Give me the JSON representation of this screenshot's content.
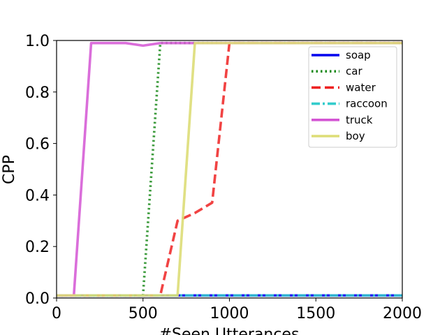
{
  "chart_data": {
    "type": "line",
    "title": "",
    "xlabel": "#Seen Utterances",
    "ylabel": "CPP",
    "xlim": [
      0,
      2000
    ],
    "ylim": [
      0,
      1.0
    ],
    "xticks": [
      0,
      500,
      1000,
      1500,
      2000
    ],
    "yticks": [
      0.0,
      0.2,
      0.4,
      0.6,
      0.8,
      1.0
    ],
    "xtick_labels": [
      "0",
      "500",
      "1000",
      "1500",
      "2000"
    ],
    "ytick_labels": [
      "0.0",
      "0.2",
      "0.4",
      "0.6",
      "0.8",
      "1.0"
    ],
    "grid": false,
    "legend_position": "upper right",
    "series": [
      {
        "name": "soap",
        "color": "#0000ee",
        "style": "solid",
        "x": [
          0,
          100,
          200,
          300,
          400,
          500,
          600,
          700,
          800,
          900,
          1000,
          1100,
          1200,
          1300,
          1400,
          1500,
          1600,
          1700,
          1800,
          1900,
          2000
        ],
        "y": [
          0.01,
          0.01,
          0.01,
          0.01,
          0.01,
          0.01,
          0.01,
          0.01,
          0.01,
          0.01,
          0.01,
          0.01,
          0.01,
          0.01,
          0.01,
          0.01,
          0.01,
          0.01,
          0.01,
          0.01,
          0.01
        ]
      },
      {
        "name": "car",
        "color": "#1a8a1a",
        "style": "dotted",
        "x": [
          0,
          100,
          200,
          300,
          400,
          500,
          600,
          700,
          800,
          900,
          1000,
          1100,
          1200,
          1300,
          1400,
          1500,
          1600,
          1700,
          1800,
          1900,
          2000
        ],
        "y": [
          0.01,
          0.01,
          0.01,
          0.01,
          0.01,
          0.01,
          0.99,
          0.99,
          0.99,
          0.99,
          0.99,
          0.99,
          0.99,
          0.99,
          0.99,
          0.99,
          0.99,
          0.99,
          0.99,
          0.99,
          0.99
        ]
      },
      {
        "name": "water",
        "color": "#ee2222",
        "style": "dashed",
        "x": [
          0,
          100,
          200,
          300,
          400,
          500,
          600,
          700,
          800,
          900,
          1000,
          1100,
          1200,
          1300,
          1400,
          1500,
          1600,
          1700,
          1800,
          1900,
          2000
        ],
        "y": [
          0.01,
          0.01,
          0.01,
          0.01,
          0.01,
          0.01,
          0.01,
          0.3,
          0.33,
          0.37,
          0.99,
          0.99,
          0.99,
          0.99,
          0.99,
          0.99,
          0.99,
          0.99,
          0.99,
          0.99,
          0.99
        ]
      },
      {
        "name": "raccoon",
        "color": "#33cccc",
        "style": "dashdot",
        "x": [
          0,
          100,
          200,
          300,
          400,
          500,
          600,
          700,
          800,
          900,
          1000,
          1100,
          1200,
          1300,
          1400,
          1500,
          1600,
          1700,
          1800,
          1900,
          2000
        ],
        "y": [
          0.01,
          0.01,
          0.01,
          0.01,
          0.01,
          0.01,
          0.01,
          0.01,
          0.01,
          0.01,
          0.01,
          0.01,
          0.01,
          0.01,
          0.01,
          0.01,
          0.01,
          0.01,
          0.01,
          0.01,
          0.01
        ]
      },
      {
        "name": "truck",
        "color": "#d455d4",
        "style": "solid",
        "x": [
          0,
          100,
          200,
          300,
          400,
          500,
          600,
          700,
          800,
          900,
          1000,
          1100,
          1200,
          1300,
          1400,
          1500,
          1600,
          1700,
          1800,
          1900,
          2000
        ],
        "y": [
          0.01,
          0.01,
          0.99,
          0.99,
          0.99,
          0.98,
          0.99,
          0.99,
          0.99,
          0.99,
          0.99,
          0.99,
          0.99,
          0.99,
          0.99,
          0.99,
          0.99,
          0.99,
          0.99,
          0.99,
          0.99
        ]
      },
      {
        "name": "boy",
        "color": "#dddd77",
        "style": "solid",
        "x": [
          0,
          100,
          200,
          300,
          400,
          500,
          600,
          700,
          800,
          900,
          1000,
          1100,
          1200,
          1300,
          1400,
          1500,
          1600,
          1700,
          1800,
          1900,
          2000
        ],
        "y": [
          0.01,
          0.01,
          0.01,
          0.01,
          0.01,
          0.01,
          0.01,
          0.01,
          0.99,
          0.99,
          0.99,
          0.99,
          0.99,
          0.99,
          0.99,
          0.99,
          0.99,
          0.99,
          0.99,
          0.99,
          0.99
        ]
      }
    ]
  }
}
